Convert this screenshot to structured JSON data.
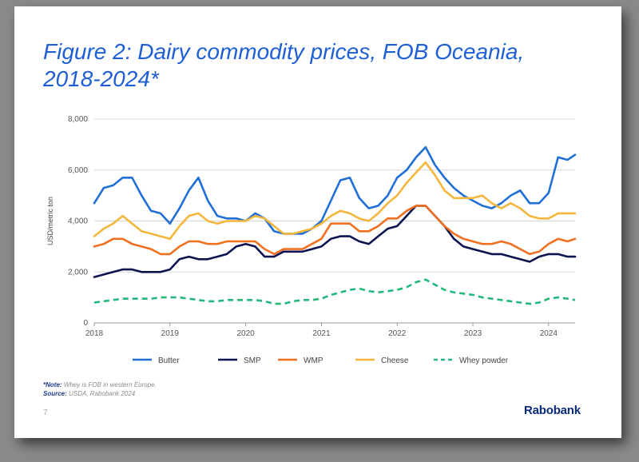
{
  "title": "Figure 2: Dairy commodity prices, FOB Oceania, 2018-2024*",
  "note_label": "*Note:",
  "note_text": "Whey is FOB in western Europe.",
  "source_label": "Source:",
  "source_text": "USDA, Rabobank 2024",
  "page_number": "7",
  "brand": "Rabobank",
  "chart_data": {
    "type": "line",
    "ylabel": "USD/metric ton",
    "xlabel": "",
    "ylim": [
      0,
      8000
    ],
    "xlim": [
      2018,
      2024.35
    ],
    "yticks": [
      "0",
      "2,000",
      "4,000",
      "6,000",
      "8,000"
    ],
    "ytick_values": [
      0,
      2000,
      4000,
      6000,
      8000
    ],
    "xticks": [
      "2018",
      "2019",
      "2020",
      "2021",
      "2022",
      "2023",
      "2024"
    ],
    "xtick_values": [
      2018,
      2019,
      2020,
      2021,
      2022,
      2023,
      2024
    ],
    "legend_placement": "bottom",
    "x": [
      2018.0,
      2018.125,
      2018.25,
      2018.375,
      2018.5,
      2018.625,
      2018.75,
      2018.875,
      2019.0,
      2019.125,
      2019.25,
      2019.375,
      2019.5,
      2019.625,
      2019.75,
      2019.875,
      2020.0,
      2020.125,
      2020.25,
      2020.375,
      2020.5,
      2020.625,
      2020.75,
      2020.875,
      2021.0,
      2021.125,
      2021.25,
      2021.375,
      2021.5,
      2021.625,
      2021.75,
      2021.875,
      2022.0,
      2022.125,
      2022.25,
      2022.375,
      2022.5,
      2022.625,
      2022.75,
      2022.875,
      2023.0,
      2023.125,
      2023.25,
      2023.375,
      2023.5,
      2023.625,
      2023.75,
      2023.875,
      2024.0,
      2024.125,
      2024.25,
      2024.35
    ],
    "series": [
      {
        "name": "Butter",
        "color": "#1f6fd6",
        "dash": false,
        "values": [
          4700,
          5300,
          5400,
          5700,
          5700,
          5000,
          4400,
          4300,
          3900,
          4500,
          5200,
          5700,
          4800,
          4200,
          4100,
          4100,
          4000,
          4300,
          4100,
          3600,
          3500,
          3500,
          3500,
          3700,
          4000,
          4800,
          5600,
          5700,
          4900,
          4500,
          4600,
          5000,
          5700,
          6000,
          6500,
          6900,
          6200,
          5700,
          5300,
          5000,
          4800,
          4600,
          4500,
          4700,
          5000,
          5200,
          4700,
          4700,
          5100,
          6500,
          6400,
          6600
        ]
      },
      {
        "name": "SMP",
        "color": "#0b1450",
        "dash": false,
        "values": [
          1800,
          1900,
          2000,
          2100,
          2100,
          2000,
          2000,
          2000,
          2100,
          2500,
          2600,
          2500,
          2500,
          2600,
          2700,
          3000,
          3100,
          3000,
          2600,
          2600,
          2800,
          2800,
          2800,
          2900,
          3000,
          3300,
          3400,
          3400,
          3200,
          3100,
          3400,
          3700,
          3800,
          4200,
          4600,
          4600,
          4200,
          3800,
          3300,
          3000,
          2900,
          2800,
          2700,
          2700,
          2600,
          2500,
          2400,
          2600,
          2700,
          2700,
          2600,
          2600
        ]
      },
      {
        "name": "WMP",
        "color": "#f07020",
        "dash": false,
        "values": [
          3000,
          3100,
          3300,
          3300,
          3100,
          3000,
          2900,
          2700,
          2700,
          3000,
          3200,
          3200,
          3100,
          3100,
          3200,
          3200,
          3200,
          3200,
          2900,
          2700,
          2900,
          2900,
          2900,
          3100,
          3300,
          3900,
          3900,
          3900,
          3600,
          3600,
          3800,
          4100,
          4100,
          4400,
          4600,
          4600,
          4200,
          3800,
          3500,
          3300,
          3200,
          3100,
          3100,
          3200,
          3100,
          2900,
          2700,
          2800,
          3100,
          3300,
          3200,
          3300
        ]
      },
      {
        "name": "Cheese",
        "color": "#f5b63c",
        "dash": false,
        "values": [
          3400,
          3700,
          3900,
          4200,
          3900,
          3600,
          3500,
          3400,
          3300,
          3800,
          4200,
          4300,
          4000,
          3900,
          4000,
          4000,
          4000,
          4200,
          4100,
          3800,
          3500,
          3500,
          3600,
          3700,
          3900,
          4200,
          4400,
          4300,
          4100,
          4000,
          4300,
          4700,
          5000,
          5500,
          5900,
          6300,
          5800,
          5200,
          4900,
          4900,
          4900,
          5000,
          4700,
          4500,
          4700,
          4500,
          4200,
          4100,
          4100,
          4300,
          4300,
          4300
        ]
      },
      {
        "name": "Whey powder",
        "color": "#22b87a",
        "dash": true,
        "values": [
          800,
          850,
          900,
          950,
          950,
          950,
          950,
          1000,
          1000,
          1000,
          950,
          900,
          850,
          850,
          900,
          900,
          900,
          900,
          850,
          750,
          750,
          850,
          900,
          900,
          950,
          1100,
          1200,
          1300,
          1350,
          1250,
          1200,
          1250,
          1300,
          1400,
          1600,
          1700,
          1500,
          1300,
          1200,
          1150,
          1100,
          1000,
          950,
          900,
          850,
          800,
          750,
          800,
          950,
          1000,
          950,
          900
        ]
      }
    ]
  }
}
